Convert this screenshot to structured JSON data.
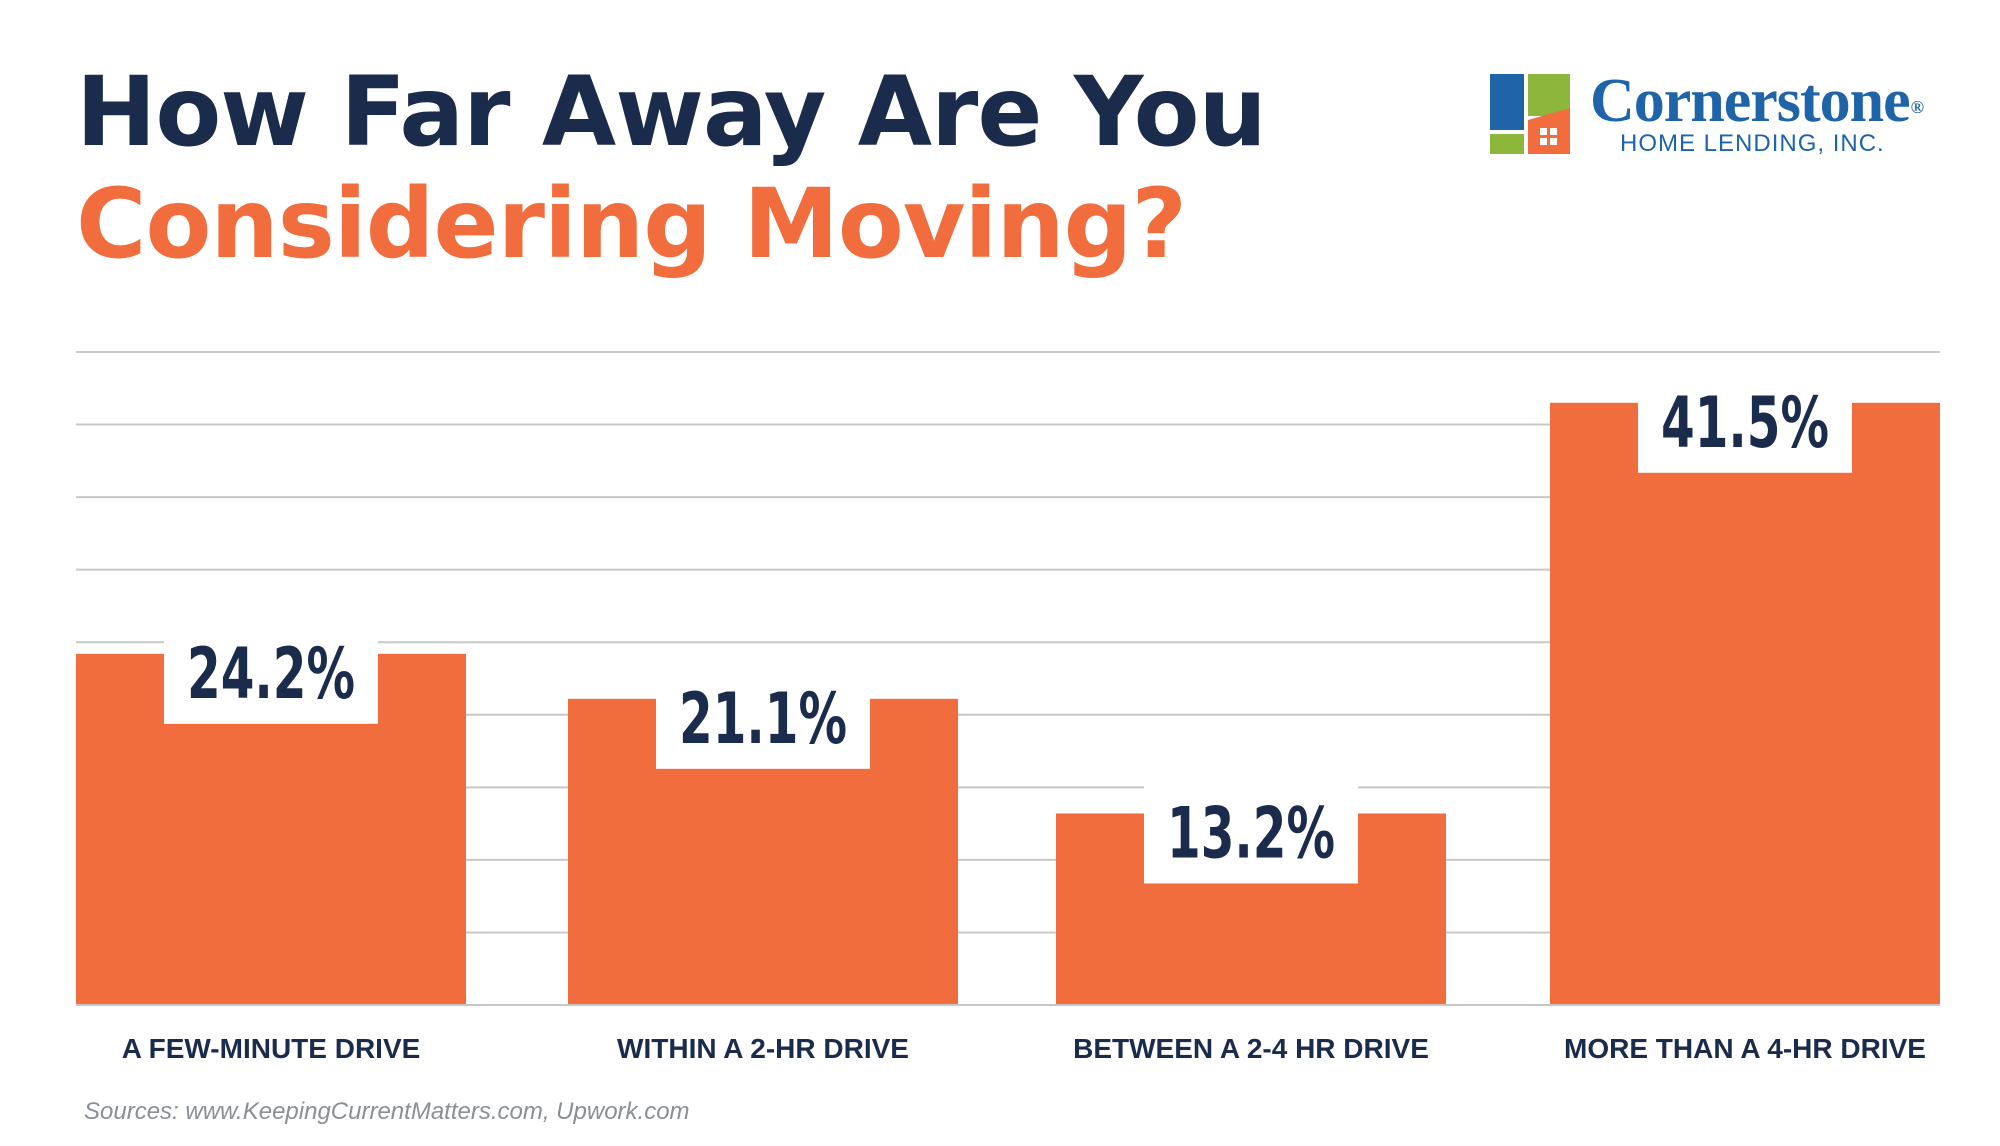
{
  "title": {
    "line1": "How Far Away Are You",
    "line2": "Considering Moving?"
  },
  "logo": {
    "brand": "Cornerstone",
    "registered": "®",
    "subtitle": "HOME LENDING, INC."
  },
  "colors": {
    "navy": "#1b2b4b",
    "orange": "#f26d3d",
    "brand_blue": "#1f63a8",
    "logo_green": "#8cb63c",
    "grid": "#c8c8c8"
  },
  "chart_data": {
    "type": "bar",
    "categories": [
      "A FEW-MINUTE DRIVE",
      "WITHIN A 2-HR DRIVE",
      "BETWEEN A 2-4 HR DRIVE",
      "MORE THAN A 4-HR DRIVE"
    ],
    "values": [
      24.2,
      21.1,
      13.2,
      41.5
    ],
    "data_labels": [
      "24.2%",
      "21.1%",
      "13.2%",
      "41.5%"
    ],
    "ylim": [
      0,
      45
    ],
    "grid": true,
    "legend": "none"
  },
  "source": "Sources: www.KeepingCurrentMatters.com, Upwork.com"
}
